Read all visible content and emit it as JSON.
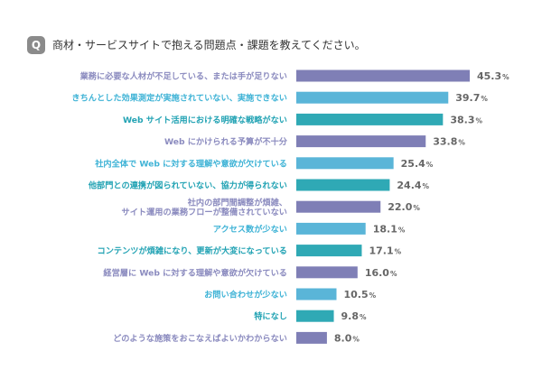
{
  "question": {
    "badge": "Q",
    "text": "商材・サービスサイトで抱える問題点・課題を教えてください。"
  },
  "chart_data": {
    "type": "bar",
    "orientation": "horizontal",
    "title": "",
    "xlabel": "",
    "ylabel": "",
    "xlim": [
      0,
      45.3
    ],
    "grid": false,
    "unit": "%",
    "palette": [
      "#7f7fb6",
      "#5ab5d8",
      "#2fa9b5"
    ],
    "label_colors": [
      "#8b8bbf",
      "#3fb3d6",
      "#23a3b4"
    ],
    "categories": [
      [
        "業務に必要な人材が不足している、または手が足りない"
      ],
      [
        "きちんとした効果測定が実施されていない、実施できない"
      ],
      [
        "Web サイト活用における明確な戦略がない"
      ],
      [
        "Web にかけられる予算が不十分"
      ],
      [
        "社内全体で Web に対する理解や意欲が欠けている"
      ],
      [
        "他部門との連携が図られていない、協力が得られない"
      ],
      [
        "社内の部門間調整が煩雑、",
        "サイト運用の業務フローが整備されていない"
      ],
      [
        "アクセス数が少ない"
      ],
      [
        "コンテンツが煩雑になり、更新が大変になっている"
      ],
      [
        "経営層に Web に対する理解や意欲が欠けている"
      ],
      [
        "お問い合わせが少ない"
      ],
      [
        "特になし"
      ],
      [
        "どのような施策をおこなえばよいかわからない"
      ]
    ],
    "values": [
      45.3,
      39.7,
      38.3,
      33.8,
      25.4,
      24.4,
      22.0,
      18.1,
      17.1,
      16.0,
      10.5,
      9.8,
      8.0
    ]
  }
}
